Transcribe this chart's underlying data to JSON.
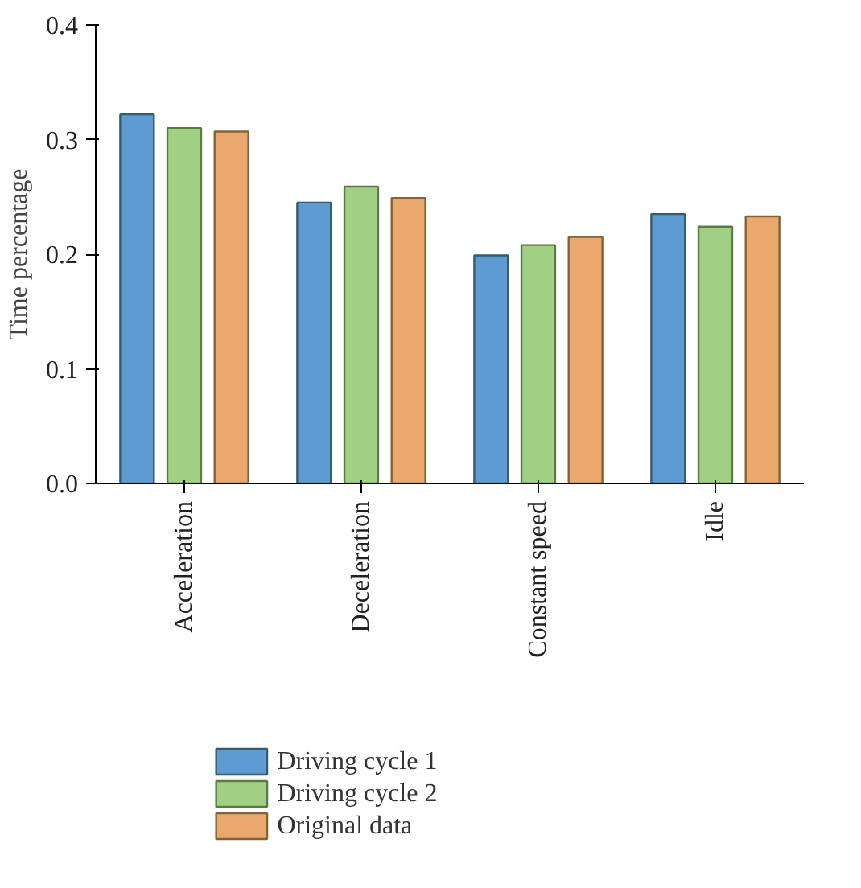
{
  "chart_data": {
    "type": "bar",
    "ylabel": "Time percentage",
    "categories": [
      "Acceleration",
      "Deceleration",
      "Constant speed",
      "Idle"
    ],
    "series": [
      {
        "name": "Driving cycle 1",
        "color": "#5f9bd3",
        "values": [
          0.322,
          0.245,
          0.199,
          0.235
        ]
      },
      {
        "name": "Driving cycle 2",
        "color": "#a1cf84",
        "values": [
          0.31,
          0.259,
          0.208,
          0.224
        ]
      },
      {
        "name": "Original data",
        "color": "#eba86d",
        "values": [
          0.307,
          0.249,
          0.215,
          0.233
        ]
      }
    ],
    "ylim": [
      0,
      0.4
    ],
    "yticks": [
      "0.0",
      0.1,
      0.2,
      0.3,
      0.4
    ],
    "grid": false,
    "legend": "bottom"
  }
}
